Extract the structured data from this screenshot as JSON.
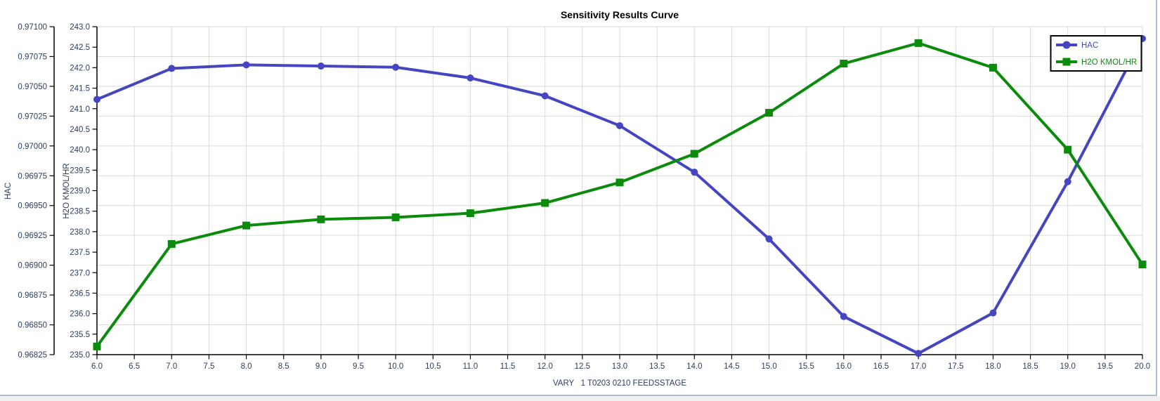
{
  "title": "Sensitivity Results Curve",
  "axes": {
    "x": {
      "label": "VARY   1 T0203 0210 FEEDSSTAGE",
      "min": 6.0,
      "max": 20.0,
      "tick_step": 0.5,
      "tick_labels": [
        "6.0",
        "6.5",
        "7.0",
        "7.5",
        "8.0",
        "8.5",
        "9.0",
        "9.5",
        "10.0",
        "10.5",
        "11.0",
        "11.5",
        "12.0",
        "12.5",
        "13.0",
        "13.5",
        "14.0",
        "14.5",
        "15.0",
        "15.5",
        "16.0",
        "16.5",
        "17.0",
        "17.5",
        "18.0",
        "18.5",
        "19.0",
        "19.5",
        "20.0"
      ]
    },
    "hac": {
      "label": "HAC",
      "min": 0.96825,
      "max": 0.971,
      "tick_step": 0.00025,
      "tick_labels": [
        "0.97100",
        "0.97075",
        "0.97050",
        "0.97025",
        "0.97000",
        "0.96975",
        "0.96950",
        "0.96925",
        "0.96900",
        "0.96875",
        "0.96850",
        "0.96825"
      ]
    },
    "h2o": {
      "label": "H2O KMOL/HR",
      "min": 235.0,
      "max": 243.0,
      "tick_step": 0.5,
      "tick_labels": [
        "243.0",
        "242.5",
        "242.0",
        "241.5",
        "241.0",
        "240.5",
        "240.0",
        "239.5",
        "239.0",
        "238.5",
        "238.0",
        "237.5",
        "237.0",
        "236.5",
        "236.0",
        "235.5",
        "235.0"
      ]
    }
  },
  "legend": {
    "items": [
      {
        "label": "HAC",
        "color": "#4545c2",
        "marker": "circle"
      },
      {
        "label": "H2O KMOL/HR",
        "color": "#0b8b0b",
        "marker": "square"
      }
    ]
  },
  "chart_data": {
    "type": "line",
    "title": "Sensitivity Results Curve",
    "xlabel": "VARY   1 T0203 0210 FEEDSSTAGE",
    "x": [
      6,
      7,
      8,
      9,
      10,
      11,
      12,
      13,
      14,
      15,
      16,
      17,
      18,
      19,
      20
    ],
    "x_range": [
      6.0,
      20.0
    ],
    "grid": "on",
    "legend_position": "top-right",
    "series": [
      {
        "name": "HAC",
        "y_axis": "hac",
        "color": "#4545c2",
        "marker": "circle",
        "axis_range": [
          0.96825,
          0.971
        ],
        "values": [
          0.97039,
          0.97065,
          0.97068,
          0.97067,
          0.97066,
          0.97057,
          0.97042,
          0.97017,
          0.96978,
          0.96922,
          0.96857,
          0.96826,
          0.9686,
          0.9697,
          0.9709
        ]
      },
      {
        "name": "H2O KMOL/HR",
        "y_axis": "h2o",
        "color": "#0b8b0b",
        "marker": "square",
        "axis_range": [
          235.0,
          243.0
        ],
        "values": [
          235.2,
          237.7,
          238.15,
          238.3,
          238.35,
          238.45,
          238.7,
          239.2,
          239.9,
          240.9,
          242.1,
          242.6,
          242.0,
          240.0,
          237.2
        ]
      }
    ]
  },
  "colors": {
    "hac_series": "#4545c2",
    "h2o_series": "#0b8b0b",
    "gridline": "#d9d9d9",
    "axis": "#000000",
    "tick_label": "#2e3d5c",
    "title": "#000000",
    "legend_border": "#000000",
    "panel_border": "#aebdd4",
    "outer_background": "#f1f1f1"
  }
}
